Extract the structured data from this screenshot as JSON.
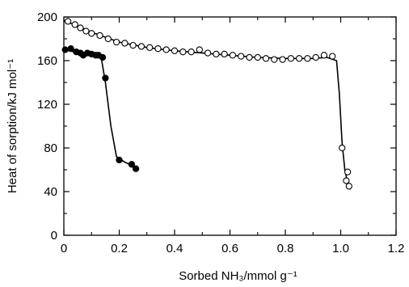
{
  "chart_data": {
    "type": "scatter",
    "xlabel": "Sorbed NH₃/mmol g⁻¹",
    "ylabel": "Heat of sorption/kJ mol⁻¹",
    "xlim": [
      0,
      1.2
    ],
    "ylim": [
      0,
      200
    ],
    "x_ticks": [
      "0",
      "0.2",
      "0.4",
      "0.6",
      "0.8",
      "1.0",
      "1.2"
    ],
    "y_ticks": [
      "0",
      "40",
      "80",
      "120",
      "160",
      "200"
    ],
    "grid": false,
    "legend": "none",
    "series": [
      {
        "marker": "open-circle",
        "points": [
          [
            0.015,
            196
          ],
          [
            0.04,
            193
          ],
          [
            0.06,
            190
          ],
          [
            0.08,
            187
          ],
          [
            0.1,
            185
          ],
          [
            0.13,
            183
          ],
          [
            0.16,
            180
          ],
          [
            0.19,
            177
          ],
          [
            0.22,
            176
          ],
          [
            0.25,
            174
          ],
          [
            0.28,
            173
          ],
          [
            0.31,
            172
          ],
          [
            0.34,
            171
          ],
          [
            0.37,
            170
          ],
          [
            0.4,
            169
          ],
          [
            0.43,
            168
          ],
          [
            0.46,
            168
          ],
          [
            0.49,
            170
          ],
          [
            0.52,
            167
          ],
          [
            0.55,
            166
          ],
          [
            0.58,
            166
          ],
          [
            0.61,
            165
          ],
          [
            0.64,
            164
          ],
          [
            0.67,
            163
          ],
          [
            0.7,
            163
          ],
          [
            0.73,
            162
          ],
          [
            0.76,
            161
          ],
          [
            0.79,
            161
          ],
          [
            0.82,
            162
          ],
          [
            0.85,
            162
          ],
          [
            0.88,
            162
          ],
          [
            0.91,
            163
          ],
          [
            0.94,
            165
          ],
          [
            0.97,
            164
          ],
          [
            1.005,
            80
          ],
          [
            1.02,
            50
          ],
          [
            1.025,
            58
          ],
          [
            1.03,
            45
          ]
        ],
        "curve": [
          [
            0.0,
            197
          ],
          [
            0.1,
            186
          ],
          [
            0.2,
            177
          ],
          [
            0.3,
            172
          ],
          [
            0.4,
            169
          ],
          [
            0.5,
            167
          ],
          [
            0.6,
            165
          ],
          [
            0.7,
            163
          ],
          [
            0.8,
            162
          ],
          [
            0.9,
            162
          ],
          [
            0.95,
            163
          ],
          [
            0.985,
            160
          ],
          [
            0.995,
            130
          ],
          [
            1.005,
            85
          ],
          [
            1.015,
            60
          ],
          [
            1.025,
            48
          ],
          [
            1.035,
            42
          ]
        ]
      },
      {
        "marker": "filled-circle",
        "points": [
          [
            0.005,
            170
          ],
          [
            0.025,
            171
          ],
          [
            0.045,
            168
          ],
          [
            0.06,
            167
          ],
          [
            0.07,
            165
          ],
          [
            0.085,
            167
          ],
          [
            0.1,
            166
          ],
          [
            0.115,
            165
          ],
          [
            0.125,
            165
          ],
          [
            0.14,
            163
          ],
          [
            0.15,
            144
          ],
          [
            0.2,
            69
          ],
          [
            0.245,
            65
          ],
          [
            0.26,
            61
          ]
        ],
        "curve": [
          [
            0.0,
            170
          ],
          [
            0.04,
            168
          ],
          [
            0.08,
            166
          ],
          [
            0.12,
            165
          ],
          [
            0.135,
            163
          ],
          [
            0.15,
            140
          ],
          [
            0.17,
            100
          ],
          [
            0.19,
            72
          ],
          [
            0.22,
            67
          ],
          [
            0.265,
            62
          ]
        ]
      }
    ]
  },
  "colors": {
    "ink": "#000000",
    "background": "#ffffff"
  }
}
